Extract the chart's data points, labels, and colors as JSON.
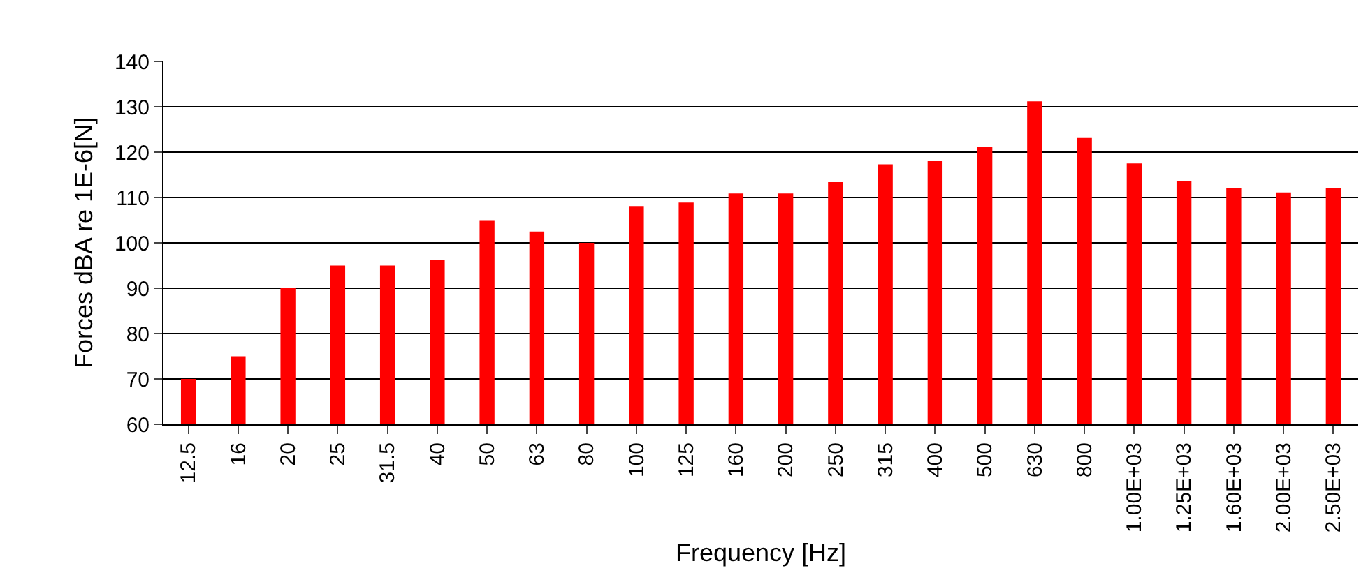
{
  "chart_data": {
    "type": "bar",
    "xlabel": "Frequency [Hz]",
    "ylabel": "Forces dBA re 1E-6[N]",
    "categories": [
      "12.5",
      "16",
      "20",
      "25",
      "31.5",
      "40",
      "50",
      "63",
      "80",
      "100",
      "125",
      "160",
      "200",
      "250",
      "315",
      "400",
      "500",
      "630",
      "800",
      "1.00E+03",
      "1.25E+03",
      "1.60E+03",
      "2.00E+03",
      "2.50E+03"
    ],
    "values": [
      70,
      75,
      90,
      95,
      95,
      96.2,
      105,
      102.5,
      100,
      108.1,
      108.9,
      110.9,
      110.9,
      113.4,
      117.3,
      118.1,
      121.2,
      131.2,
      123.1,
      117.5,
      113.7,
      112.0,
      111.1,
      112.0
    ],
    "color": "#ff0000",
    "ylim": [
      60,
      140
    ],
    "yticks": [
      60,
      70,
      80,
      90,
      100,
      110,
      120,
      130,
      140
    ],
    "grid": "y"
  }
}
